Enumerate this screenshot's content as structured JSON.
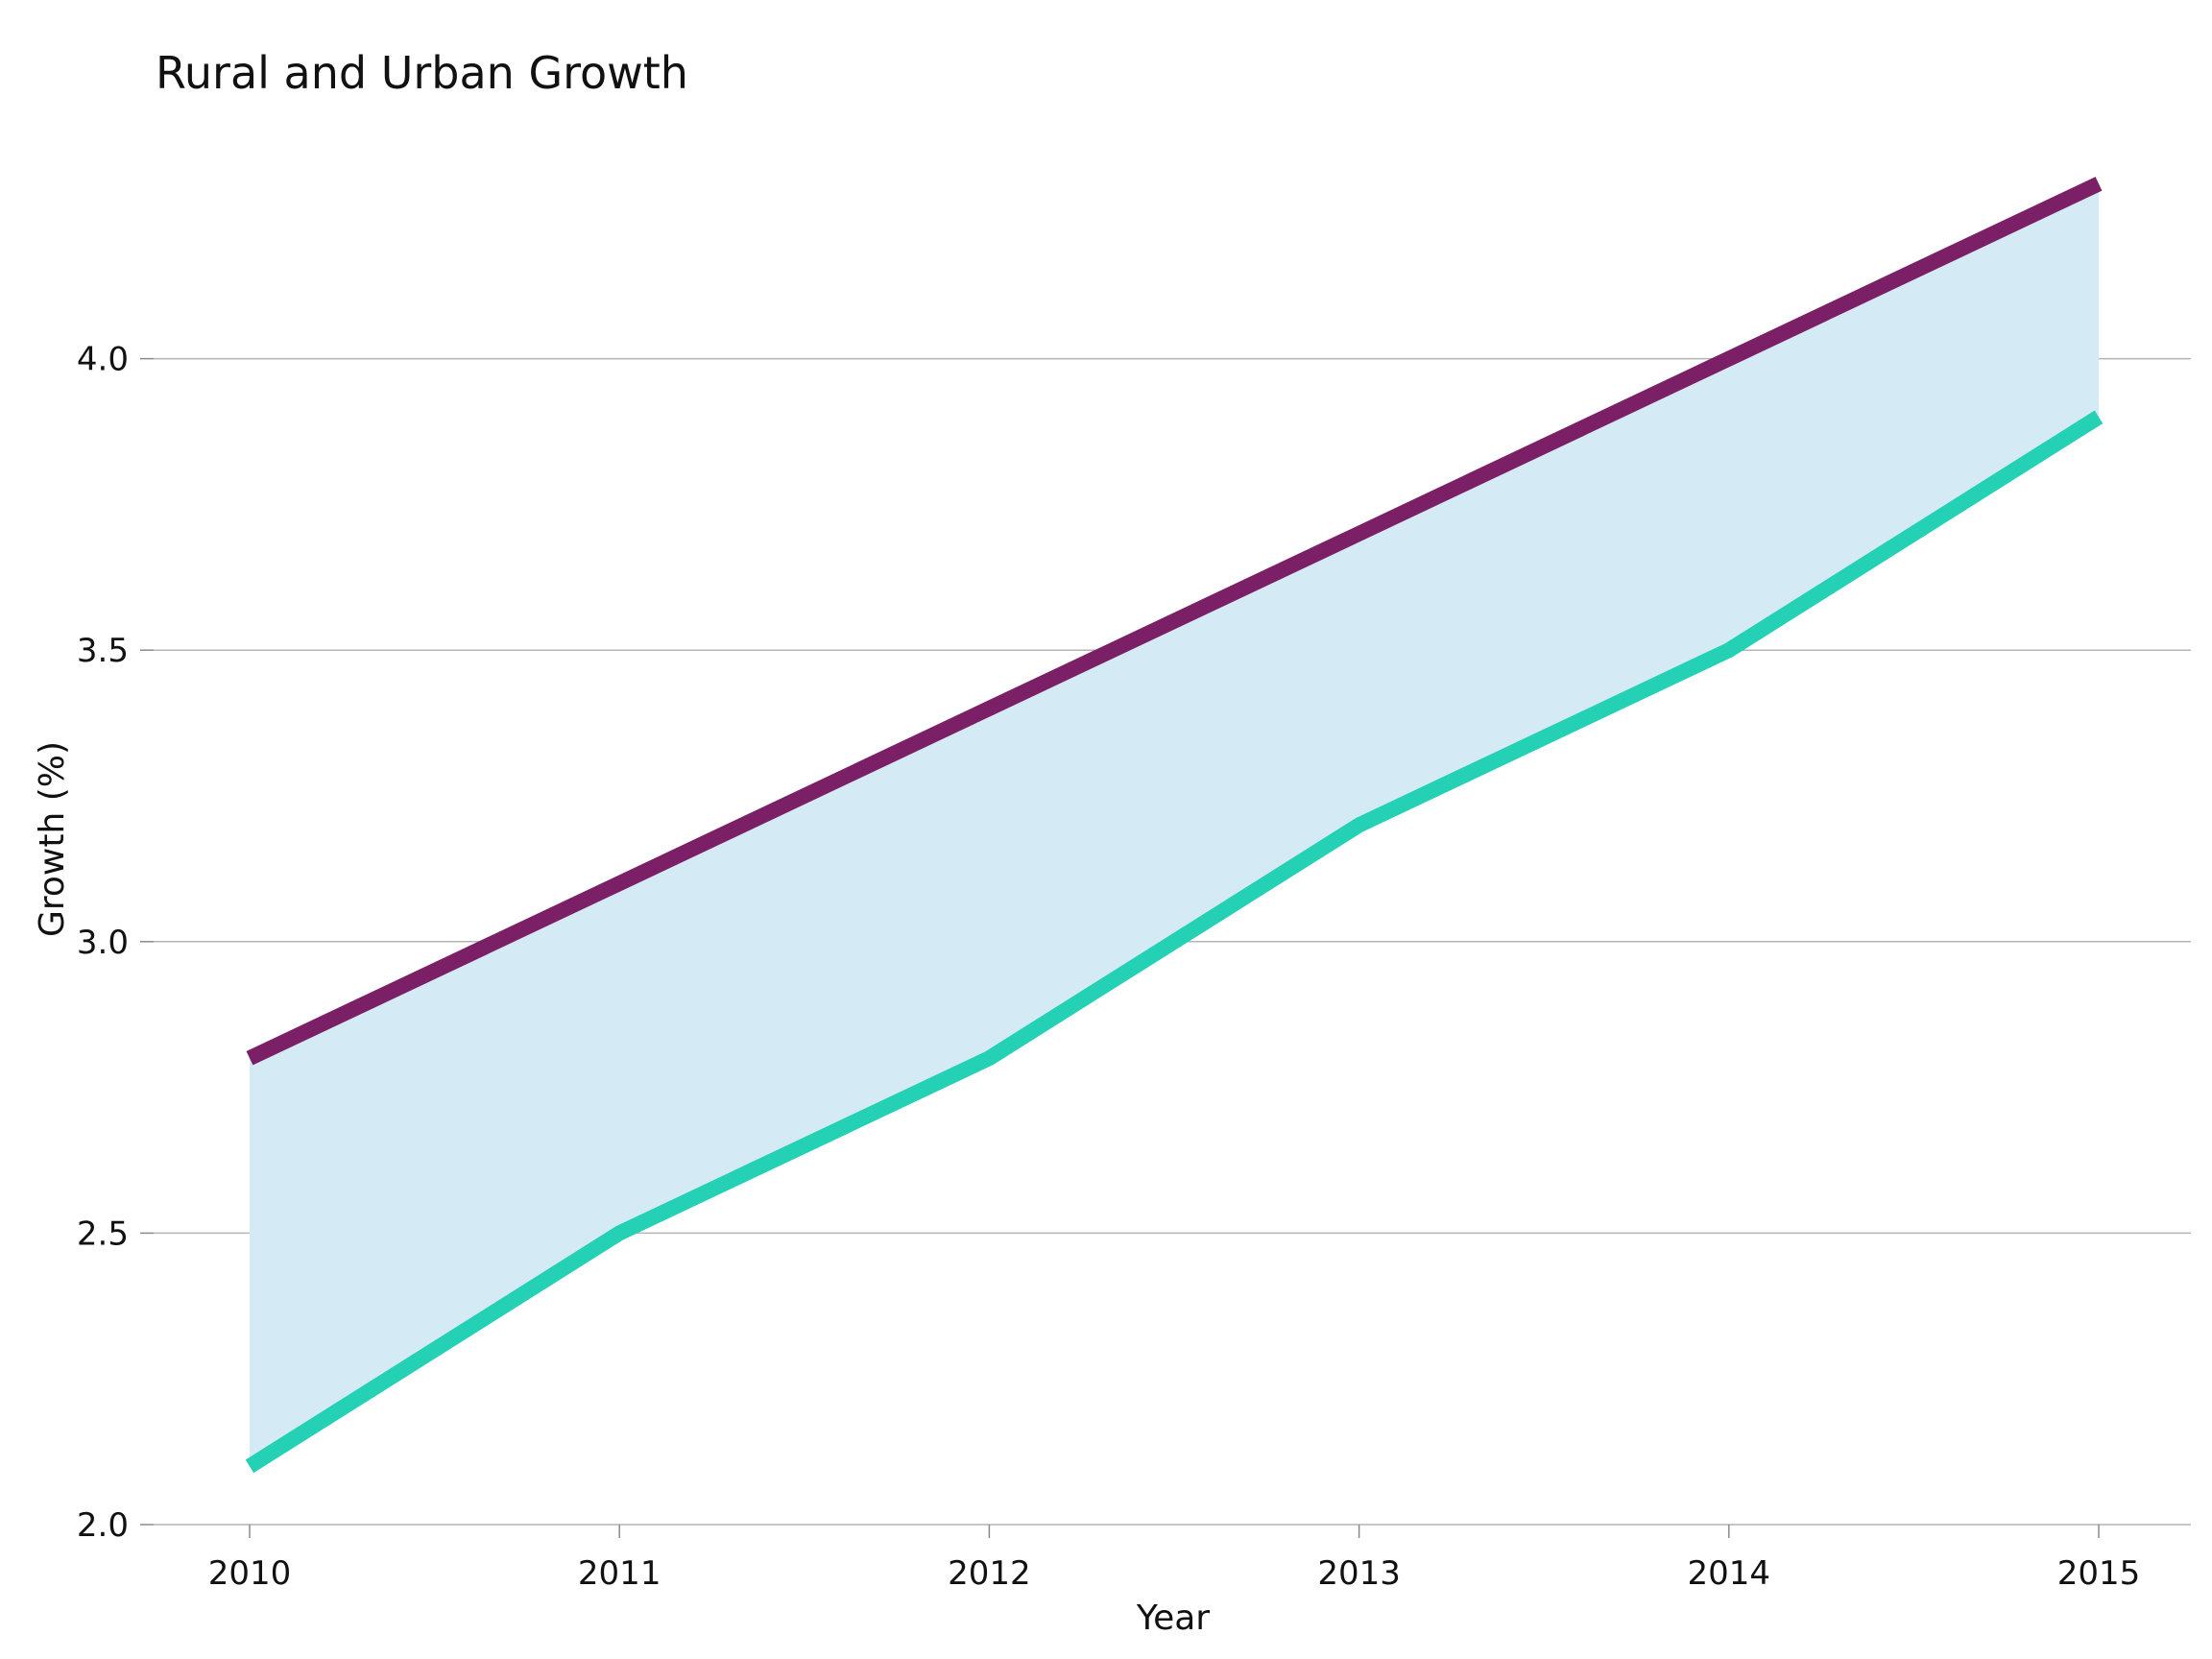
{
  "chart_data": {
    "type": "area",
    "title": "Rural and Urban Growth",
    "xlabel": "Year",
    "ylabel": "Growth (%)",
    "x": [
      2010,
      2011,
      2012,
      2013,
      2014,
      2015
    ],
    "x_ticks": [
      "2010",
      "2011",
      "2012",
      "2013",
      "2014",
      "2015"
    ],
    "y_ticks": [
      "2.0",
      "2.5",
      "3.0",
      "3.5",
      "4.0"
    ],
    "ylim": [
      2.0,
      4.35
    ],
    "grid": "horizontal",
    "series": [
      {
        "values": [
          2.8,
          3.1,
          3.4,
          3.7,
          4.0,
          4.3
        ],
        "color": "#7b1f66"
      },
      {
        "values": [
          2.1,
          2.5,
          2.8,
          3.2,
          3.5,
          3.9
        ],
        "color": "#24d1b5"
      }
    ],
    "fill_between": {
      "color": "#d4ebf5"
    }
  }
}
